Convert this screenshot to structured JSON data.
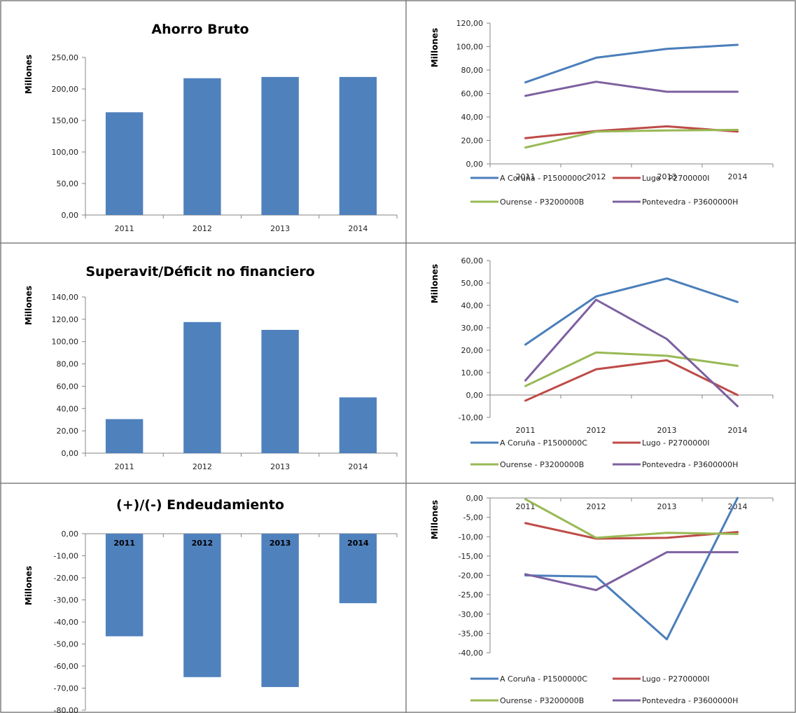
{
  "colors": {
    "bar": "#4F81BD",
    "a_coruna": "#4A7EBB",
    "lugo": "#BE4B48",
    "ourense": "#98B954",
    "pontevedra": "#7D60A0",
    "axis": "#868686",
    "border": "#808080"
  },
  "chart_data": [
    {
      "type": "bar",
      "title": "Ahorro Bruto",
      "ylabel": "Millones",
      "categories": [
        "2011",
        "2012",
        "2013",
        "2014"
      ],
      "values": [
        163,
        217,
        219,
        219
      ],
      "ylim": [
        0,
        250
      ],
      "yticks": [
        "0,00",
        "50,00",
        "100,00",
        "150,00",
        "200,00",
        "250,00"
      ],
      "ytick_values": [
        0,
        50,
        100,
        150,
        200,
        250
      ]
    },
    {
      "type": "line",
      "title": "",
      "ylabel": "Millones",
      "categories": [
        "2011",
        "2012",
        "2013",
        "2014"
      ],
      "ylim": [
        0,
        120
      ],
      "yticks": [
        "0,00",
        "20,00",
        "40,00",
        "60,00",
        "80,00",
        "100,00",
        "120,00"
      ],
      "ytick_values": [
        0,
        20,
        40,
        60,
        80,
        100,
        120
      ],
      "series": [
        {
          "name": "A Coruña - P1500000C",
          "values": [
            69.5,
            90.5,
            98,
            101.5
          ]
        },
        {
          "name": "Lugo - P2700000I",
          "values": [
            22,
            28,
            32,
            27.5
          ]
        },
        {
          "name": "Ourense - P3200000B",
          "values": [
            14,
            27.5,
            28.5,
            29
          ]
        },
        {
          "name": "Pontevedra - P3600000H",
          "values": [
            58,
            70,
            61.5,
            61.5
          ]
        }
      ]
    },
    {
      "type": "bar",
      "title": "Superavit/Déficit no financiero",
      "ylabel": "Millones",
      "categories": [
        "2011",
        "2012",
        "2013",
        "2014"
      ],
      "values": [
        30.5,
        117.5,
        110.5,
        50
      ],
      "ylim": [
        0,
        140
      ],
      "yticks": [
        "0,00",
        "20,00",
        "40,00",
        "60,00",
        "80,00",
        "100,00",
        "120,00",
        "140,00"
      ],
      "ytick_values": [
        0,
        20,
        40,
        60,
        80,
        100,
        120,
        140
      ]
    },
    {
      "type": "line",
      "title": "",
      "ylabel": "Millones",
      "categories": [
        "2011",
        "2012",
        "2013",
        "2014"
      ],
      "ylim": [
        -10,
        60
      ],
      "yticks": [
        "-10,00",
        "0,00",
        "10,00",
        "20,00",
        "30,00",
        "40,00",
        "50,00",
        "60,00"
      ],
      "ytick_values": [
        -10,
        0,
        10,
        20,
        30,
        40,
        50,
        60
      ],
      "series": [
        {
          "name": "A Coruña - P1500000C",
          "values": [
            22.5,
            44,
            52,
            41.5
          ]
        },
        {
          "name": "Lugo - P2700000I",
          "values": [
            -2.5,
            11.5,
            15.5,
            0
          ]
        },
        {
          "name": "Ourense - P3200000B",
          "values": [
            4,
            19,
            17.5,
            13
          ]
        },
        {
          "name": "Pontevedra - P3600000H",
          "values": [
            6.5,
            42.5,
            25,
            -5
          ]
        }
      ]
    },
    {
      "type": "bar",
      "title": "(+)/(-) Endeudamiento",
      "ylabel": "Millones",
      "categories": [
        "2011",
        "2012",
        "2013",
        "2014"
      ],
      "values": [
        -46.5,
        -65,
        -69.5,
        -31.5
      ],
      "ylim": [
        -80,
        0
      ],
      "yticks": [
        "-80,00",
        "-70,00",
        "-60,00",
        "-50,00",
        "-40,00",
        "-30,00",
        "-20,00",
        "-10,00",
        "0,00"
      ],
      "ytick_values": [
        -80,
        -70,
        -60,
        -50,
        -40,
        -30,
        -20,
        -10,
        0
      ]
    },
    {
      "type": "line",
      "title": "",
      "ylabel": "Millones",
      "categories": [
        "2011",
        "2012",
        "2013",
        "2014"
      ],
      "ylim": [
        -40,
        0
      ],
      "yticks": [
        "-40,00",
        "-35,00",
        "-30,00",
        "-25,00",
        "-20,00",
        "-15,00",
        "-10,00",
        "-5,00",
        "0,00"
      ],
      "ytick_values": [
        -40,
        -35,
        -30,
        -25,
        -20,
        -15,
        -10,
        -5,
        0
      ],
      "series": [
        {
          "name": "A Coruña - P1500000C",
          "values": [
            -20,
            -20.3,
            -36.5,
            0
          ]
        },
        {
          "name": "Lugo - P2700000I",
          "values": [
            -6.5,
            -10.5,
            -10.3,
            -8.8
          ]
        },
        {
          "name": "Ourense - P3200000B",
          "values": [
            -0.3,
            -10.3,
            -9,
            -9.3
          ]
        },
        {
          "name": "Pontevedra - P3600000H",
          "values": [
            -19.7,
            -23.8,
            -14,
            -14
          ]
        }
      ]
    }
  ]
}
